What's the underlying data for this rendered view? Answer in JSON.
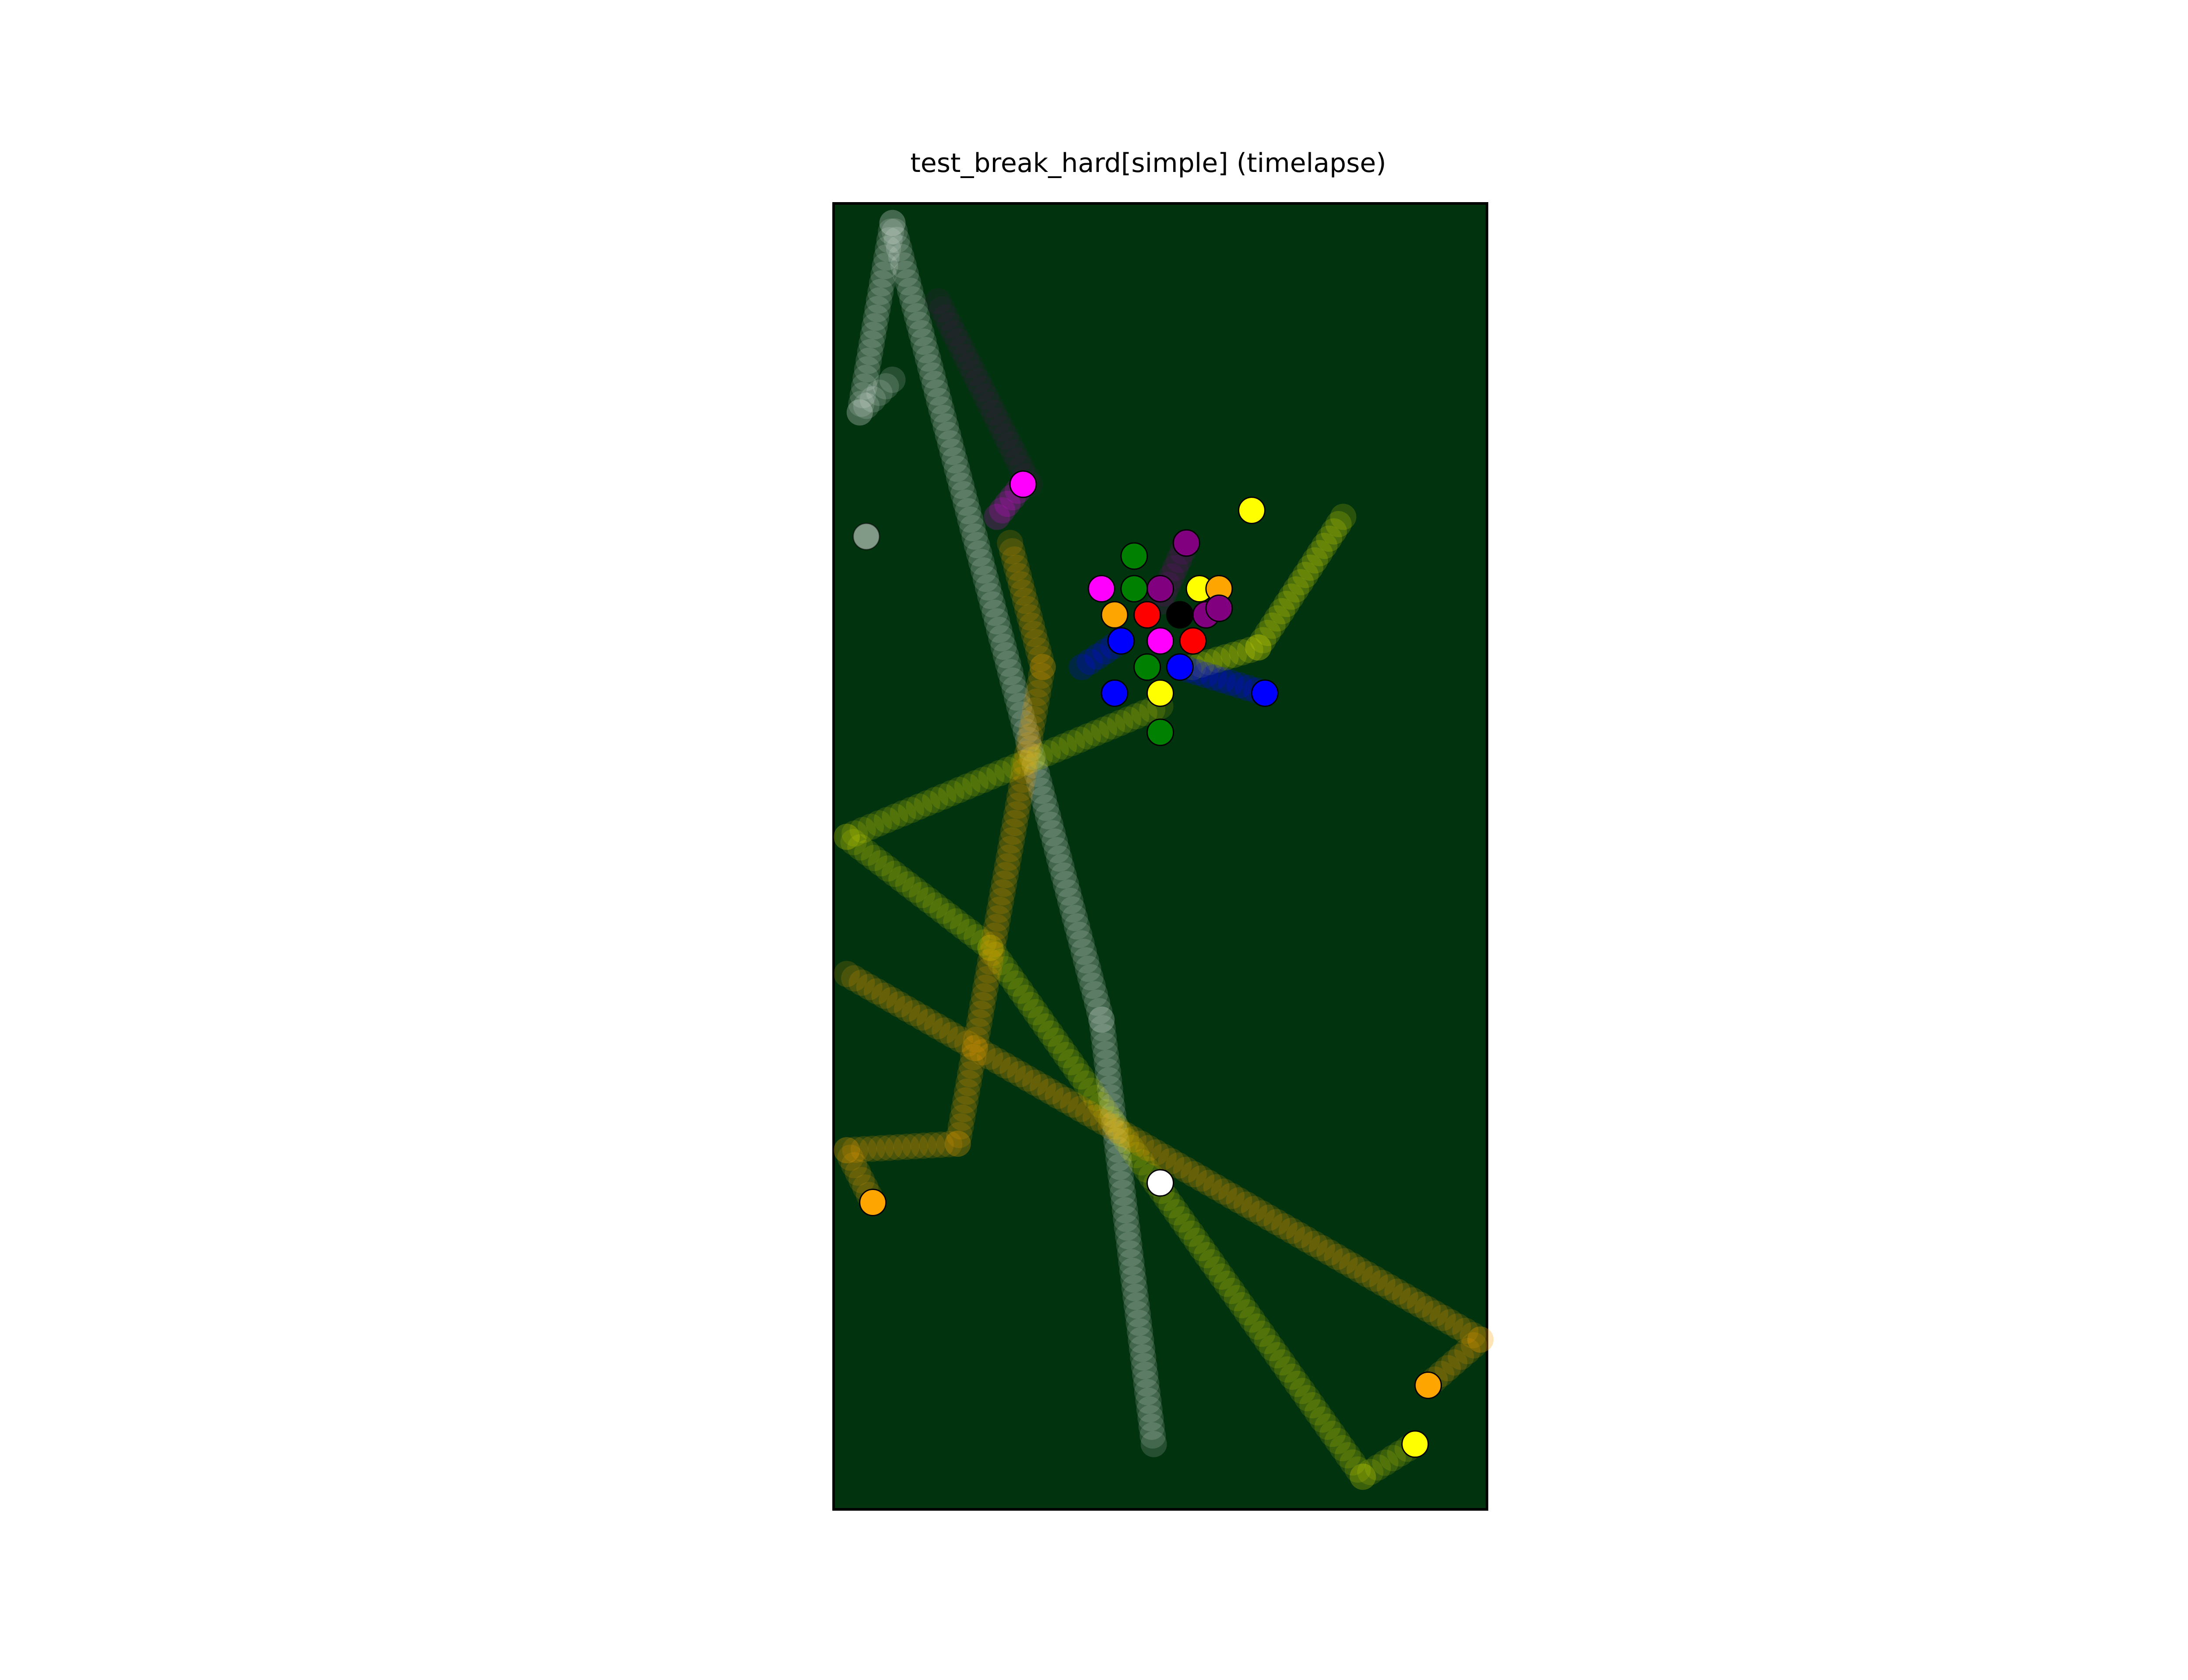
{
  "figure": {
    "title": "test_break_hard[simple] (timelapse)"
  },
  "table": {
    "felt_color": "#02330f",
    "border_color": "#000000",
    "width_units": 1.0,
    "length_units": 2.0
  },
  "ball_colors": {
    "white": "#ffffff",
    "yellow": "#ffff00",
    "blue": "#0000ff",
    "red": "#ff0000",
    "purple": "#800080",
    "orange": "#ffa500",
    "green": "#008000",
    "black": "#000000",
    "magenta": "#ff00ff"
  },
  "balls": [
    {
      "id": "cue-ball-trajectory",
      "color": "white",
      "opacity": 0.4,
      "path": [
        [
          0.49,
          0.1
        ],
        [
          0.41,
          0.75
        ],
        [
          0.09,
          1.97
        ],
        [
          0.04,
          1.68
        ],
        [
          0.09,
          1.73
        ]
      ]
    },
    {
      "id": "cue-ball-rest",
      "color": "white",
      "opacity": 0.5,
      "path": [
        [
          0.05,
          1.49
        ]
      ]
    },
    {
      "id": "cue-ball-final",
      "color": "white",
      "opacity": 1,
      "path": [
        [
          0.5,
          0.5
        ]
      ]
    },
    {
      "id": "yellow-ball-1",
      "color": "yellow",
      "opacity": 0.45,
      "path": [
        [
          0.78,
          1.52
        ],
        [
          0.65,
          1.32
        ],
        [
          0.55,
          1.29
        ]
      ]
    },
    {
      "id": "yellow-ball-1-final",
      "color": "yellow",
      "opacity": 1,
      "path": [
        [
          0.64,
          1.53
        ]
      ]
    },
    {
      "id": "yellow-ball-2",
      "color": "yellow",
      "opacity": 0.35,
      "path": [
        [
          0.5,
          1.23
        ],
        [
          0.02,
          1.03
        ],
        [
          0.24,
          0.86
        ],
        [
          0.81,
          0.05
        ],
        [
          0.89,
          0.1
        ]
      ]
    },
    {
      "id": "yellow-ball-2-final",
      "color": "yellow",
      "opacity": 1,
      "path": [
        [
          0.89,
          0.1
        ]
      ]
    },
    {
      "id": "yellow-ball-3",
      "color": "yellow",
      "opacity": 1,
      "path": [
        [
          0.56,
          1.41
        ]
      ]
    },
    {
      "id": "yellow-ball-4",
      "color": "yellow",
      "opacity": 1,
      "path": [
        [
          0.5,
          1.25
        ]
      ]
    },
    {
      "id": "orange-ball-1",
      "color": "orange",
      "opacity": 0.45,
      "path": [
        [
          0.27,
          1.48
        ],
        [
          0.32,
          1.29
        ],
        [
          0.19,
          0.56
        ],
        [
          0.02,
          0.55
        ],
        [
          0.06,
          0.47
        ]
      ]
    },
    {
      "id": "orange-ball-1-final",
      "color": "orange",
      "opacity": 1,
      "path": [
        [
          0.06,
          0.47
        ]
      ]
    },
    {
      "id": "orange-ball-2",
      "color": "orange",
      "opacity": 0.45,
      "path": [
        [
          0.02,
          0.82
        ],
        [
          0.99,
          0.26
        ],
        [
          0.91,
          0.19
        ]
      ]
    },
    {
      "id": "orange-ball-2-final",
      "color": "orange",
      "opacity": 1,
      "path": [
        [
          0.91,
          0.19
        ]
      ]
    },
    {
      "id": "orange-ball-3",
      "color": "orange",
      "opacity": 1,
      "path": [
        [
          0.43,
          1.37
        ]
      ]
    },
    {
      "id": "orange-ball-4",
      "color": "orange",
      "opacity": 1,
      "path": [
        [
          0.59,
          1.41
        ]
      ]
    },
    {
      "id": "magenta-ball-1",
      "color": "magenta",
      "opacity": 0.5,
      "path": [
        [
          0.25,
          1.52
        ],
        [
          0.29,
          1.57
        ]
      ]
    },
    {
      "id": "magenta-ball-1-final",
      "color": "magenta",
      "opacity": 1,
      "path": [
        [
          0.29,
          1.57
        ]
      ]
    },
    {
      "id": "magenta-ball-2",
      "color": "magenta",
      "opacity": 1,
      "path": [
        [
          0.41,
          1.41
        ]
      ]
    },
    {
      "id": "magenta-ball-3",
      "color": "magenta",
      "opacity": 1,
      "path": [
        [
          0.5,
          1.33
        ]
      ]
    },
    {
      "id": "purple-ball-1",
      "color": "purple",
      "opacity": 0.5,
      "path": [
        [
          0.5,
          1.39
        ],
        [
          0.54,
          1.48
        ]
      ]
    },
    {
      "id": "purple-ball-1-final",
      "color": "purple",
      "opacity": 1,
      "path": [
        [
          0.54,
          1.48
        ]
      ]
    },
    {
      "id": "purple-ball-2",
      "color": "purple",
      "opacity": 1,
      "path": [
        [
          0.5,
          1.41
        ]
      ]
    },
    {
      "id": "purple-ball-3",
      "color": "purple",
      "opacity": 1,
      "path": [
        [
          0.57,
          1.37
        ]
      ]
    },
    {
      "id": "purple-ball-4",
      "color": "purple",
      "opacity": 1,
      "path": [
        [
          0.59,
          1.38
        ]
      ]
    },
    {
      "id": "purple-ball-ghost",
      "color": "purple",
      "opacity": 0.25,
      "path": [
        [
          0.16,
          1.85
        ],
        [
          0.3,
          1.57
        ]
      ]
    },
    {
      "id": "green-ball-1",
      "color": "green",
      "opacity": 1,
      "path": [
        [
          0.46,
          1.46
        ]
      ]
    },
    {
      "id": "green-ball-2",
      "color": "green",
      "opacity": 1,
      "path": [
        [
          0.46,
          1.41
        ]
      ]
    },
    {
      "id": "green-ball-3",
      "color": "green",
      "opacity": 1,
      "path": [
        [
          0.48,
          1.29
        ]
      ]
    },
    {
      "id": "green-ball-4",
      "color": "green",
      "opacity": 1,
      "path": [
        [
          0.5,
          1.19
        ]
      ]
    },
    {
      "id": "red-ball-1",
      "color": "red",
      "opacity": 1,
      "path": [
        [
          0.48,
          1.37
        ]
      ]
    },
    {
      "id": "red-ball-2",
      "color": "red",
      "opacity": 1,
      "path": [
        [
          0.55,
          1.33
        ]
      ]
    },
    {
      "id": "blue-ball-1",
      "color": "blue",
      "opacity": 0.6,
      "path": [
        [
          0.38,
          1.29
        ],
        [
          0.44,
          1.33
        ]
      ]
    },
    {
      "id": "blue-ball-2",
      "color": "blue",
      "opacity": 1,
      "path": [
        [
          0.44,
          1.33
        ]
      ]
    },
    {
      "id": "blue-ball-3",
      "color": "blue",
      "opacity": 1,
      "path": [
        [
          0.53,
          1.29
        ]
      ]
    },
    {
      "id": "blue-ball-4",
      "color": "blue",
      "opacity": 1,
      "path": [
        [
          0.43,
          1.25
        ]
      ]
    },
    {
      "id": "blue-ball-5",
      "color": "blue",
      "opacity": 0.6,
      "path": [
        [
          0.53,
          1.29
        ],
        [
          0.66,
          1.25
        ]
      ]
    },
    {
      "id": "blue-ball-5-final",
      "color": "blue",
      "opacity": 1,
      "path": [
        [
          0.66,
          1.25
        ]
      ]
    },
    {
      "id": "black-ball",
      "color": "black",
      "opacity": 1,
      "path": [
        [
          0.53,
          1.37
        ]
      ]
    }
  ]
}
